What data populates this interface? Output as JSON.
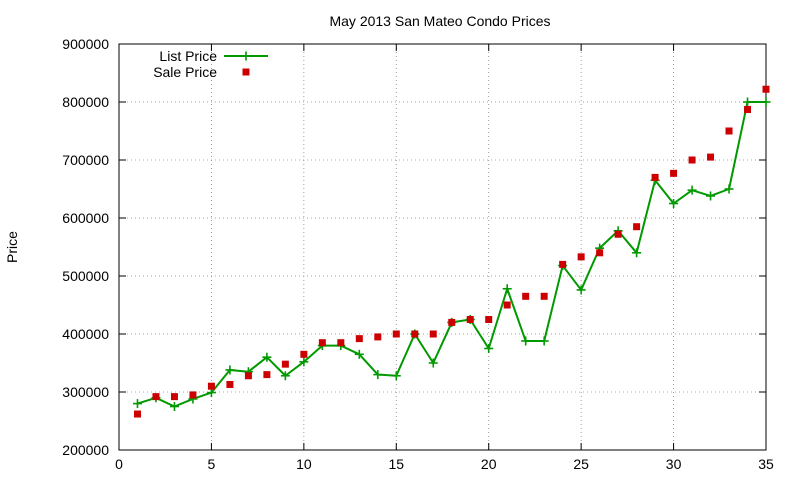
{
  "chart_data": {
    "type": "line",
    "title": "May 2013 San Mateo Condo Prices",
    "xlabel": "",
    "ylabel": "Price",
    "xlim": [
      0,
      35
    ],
    "ylim": [
      200000,
      900000
    ],
    "xticks": [
      "0",
      "5",
      "10",
      "15",
      "20",
      "25",
      "30",
      "35"
    ],
    "yticks": [
      "200000",
      "300000",
      "400000",
      "500000",
      "600000",
      "700000",
      "800000",
      "900000"
    ],
    "grid": true,
    "legend_position": "top-left",
    "series": [
      {
        "name": "List Price",
        "style": "line-with-plus-markers",
        "color": "#009900",
        "x": [
          1,
          2,
          3,
          4,
          5,
          6,
          7,
          8,
          9,
          10,
          11,
          12,
          13,
          14,
          15,
          16,
          17,
          18,
          19,
          20,
          21,
          22,
          23,
          24,
          25,
          26,
          27,
          28,
          29,
          30,
          31,
          32,
          33,
          34,
          35
        ],
        "y": [
          280000,
          290000,
          275000,
          288000,
          299000,
          338000,
          335000,
          360000,
          328000,
          352000,
          380000,
          380000,
          365000,
          330000,
          328000,
          400000,
          350000,
          420000,
          425000,
          375000,
          478000,
          388000,
          388000,
          518000,
          476000,
          548000,
          578000,
          540000,
          665000,
          625000,
          648000,
          638000,
          650000,
          800000,
          800000
        ]
      },
      {
        "name": "Sale Price",
        "style": "square-markers",
        "color": "#cc0000",
        "x": [
          1,
          2,
          3,
          4,
          5,
          6,
          7,
          8,
          9,
          10,
          11,
          12,
          13,
          14,
          15,
          16,
          17,
          18,
          19,
          20,
          21,
          22,
          23,
          24,
          25,
          26,
          27,
          28,
          29,
          30,
          31,
          32,
          33,
          34,
          35
        ],
        "y": [
          262000,
          292000,
          292000,
          295000,
          310000,
          313000,
          328000,
          330000,
          348000,
          365000,
          385000,
          385000,
          392000,
          395000,
          400000,
          400000,
          400000,
          420000,
          425000,
          425000,
          450000,
          465000,
          465000,
          520000,
          533000,
          540000,
          572000,
          585000,
          670000,
          677000,
          700000,
          705000,
          750000,
          787000,
          822000
        ]
      }
    ]
  }
}
